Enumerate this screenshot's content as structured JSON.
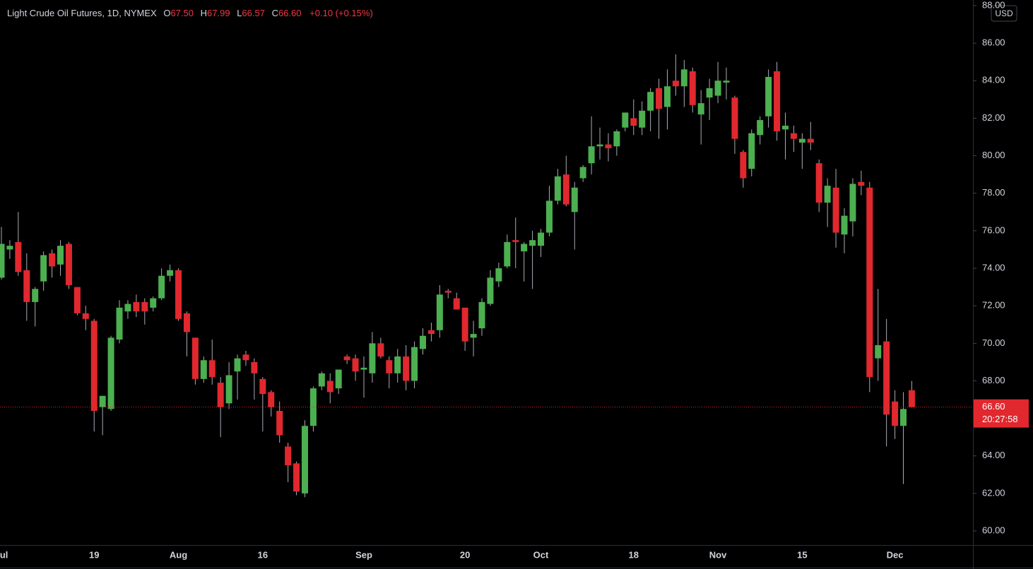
{
  "chart_data": {
    "type": "candlestick",
    "title": "Light Crude Oil Futures, 1D, NYMEX",
    "legend": {
      "open_key": "O",
      "open": "67.50",
      "high_key": "H",
      "high": "67.99",
      "low_key": "L",
      "low": "66.57",
      "close_key": "C",
      "close": "66.60",
      "change": "+0.10 (+0.15%)"
    },
    "currency": "USD",
    "last_price_label": "66.60",
    "countdown": "20:27:58",
    "up_color": "#4caf50",
    "down_color": "#e0282e",
    "wick_color": "#a8acb5",
    "categories": [
      "Jul",
      null,
      null,
      null,
      null,
      null,
      null,
      null,
      null,
      null,
      null,
      "19",
      null,
      null,
      null,
      null,
      null,
      null,
      null,
      null,
      null,
      "Aug",
      null,
      null,
      null,
      null,
      null,
      null,
      null,
      null,
      null,
      "16",
      null,
      null,
      null,
      null,
      null,
      null,
      null,
      null,
      null,
      null,
      null,
      "Sep",
      null,
      null,
      null,
      null,
      null,
      null,
      null,
      null,
      null,
      null,
      null,
      "20",
      null,
      null,
      null,
      null,
      null,
      null,
      null,
      null,
      "Oct",
      null,
      null,
      null,
      null,
      null,
      null,
      null,
      null,
      null,
      null,
      "18",
      null,
      null,
      null,
      null,
      null,
      null,
      null,
      null,
      null,
      "Nov",
      null,
      null,
      null,
      null,
      null,
      null,
      null,
      null,
      null,
      "15",
      null,
      null,
      null,
      null,
      null,
      null,
      null,
      null,
      null,
      null,
      "Dec",
      null,
      null
    ],
    "open": [
      73.5,
      75.0,
      75.4,
      73.9,
      72.2,
      73.3,
      74.8,
      74.2,
      75.3,
      73.0,
      71.6,
      71.2,
      66.6,
      66.5,
      70.2,
      71.7,
      72.2,
      72.2,
      71.9,
      72.4,
      73.6,
      73.9,
      71.6,
      70.3,
      68.1,
      69.1,
      67.9,
      66.8,
      68.5,
      69.4,
      69.0,
      68.1,
      67.4,
      66.4,
      64.5,
      63.6,
      62.0,
      65.6,
      67.7,
      68.0,
      67.6,
      69.3,
      69.2,
      68.6,
      68.4,
      70.0,
      69.1,
      68.4,
      69.3,
      68.0,
      69.7,
      70.7,
      70.7,
      72.8,
      72.4,
      71.9,
      70.3,
      70.8,
      72.1,
      73.3,
      74.1,
      75.5,
      74.9,
      75.2,
      75.2,
      75.9,
      77.6,
      79.0,
      77.0,
      78.8,
      79.6,
      80.5,
      80.6,
      80.5,
      81.5,
      82.0,
      81.5,
      82.4,
      83.6,
      82.6,
      84.0,
      83.7,
      84.5,
      82.2,
      83.1,
      83.2,
      83.9,
      83.1,
      80.2,
      79.3,
      81.1,
      82.1,
      84.5,
      81.4,
      81.2,
      80.7,
      80.9,
      79.6,
      77.5,
      78.3,
      75.8,
      76.5,
      78.6,
      78.3,
      69.2,
      70.1,
      66.9,
      65.6,
      67.5
    ],
    "high": [
      76.2,
      75.5,
      77.0,
      74.8,
      73.0,
      74.9,
      75.0,
      75.5,
      75.4,
      73.0,
      72.0,
      71.3,
      67.2,
      70.4,
      72.3,
      72.3,
      72.6,
      72.4,
      72.5,
      74.0,
      74.2,
      74.0,
      71.7,
      70.3,
      69.3,
      70.2,
      68.2,
      69.0,
      69.4,
      69.6,
      69.2,
      68.2,
      67.5,
      66.9,
      64.7,
      63.7,
      65.9,
      67.7,
      68.5,
      68.4,
      68.6,
      69.4,
      69.4,
      69.3,
      70.6,
      70.3,
      69.3,
      69.7,
      69.9,
      70.1,
      70.8,
      71.1,
      73.1,
      72.9,
      72.7,
      71.9,
      71.2,
      72.4,
      73.9,
      74.3,
      75.8,
      76.7,
      75.4,
      76.0,
      76.1,
      78.4,
      79.3,
      80.0,
      78.6,
      79.5,
      82.1,
      81.5,
      81.2,
      81.4,
      82.3,
      83.0,
      82.9,
      83.6,
      84.1,
      84.6,
      85.4,
      85.1,
      84.7,
      83.5,
      84.1,
      85.0,
      84.7,
      83.2,
      80.3,
      81.4,
      82.1,
      84.6,
      85.0,
      82.3,
      81.6,
      81.2,
      81.8,
      79.8,
      78.8,
      79.3,
      77.2,
      78.8,
      79.2,
      78.6,
      72.9,
      71.3,
      67.5,
      67.4,
      67.99
    ],
    "low": [
      73.4,
      74.5,
      73.6,
      71.2,
      70.9,
      72.8,
      73.5,
      73.6,
      72.9,
      71.5,
      70.7,
      65.3,
      65.1,
      66.4,
      70.0,
      71.3,
      71.4,
      71.0,
      71.7,
      72.3,
      73.3,
      71.2,
      69.3,
      67.8,
      67.9,
      67.8,
      65.0,
      66.5,
      67.0,
      68.8,
      67.0,
      65.3,
      66.1,
      64.7,
      62.6,
      61.9,
      61.8,
      65.3,
      67.5,
      66.8,
      67.3,
      68.9,
      68.0,
      67.1,
      67.9,
      69.2,
      67.6,
      67.9,
      67.5,
      67.6,
      69.4,
      70.1,
      70.3,
      72.4,
      71.8,
      69.6,
      69.3,
      70.4,
      72.0,
      73.0,
      74.0,
      74.0,
      73.3,
      72.9,
      74.6,
      75.7,
      77.4,
      77.3,
      75.0,
      78.6,
      79.0,
      79.8,
      79.7,
      80.0,
      81.3,
      81.1,
      81.1,
      81.3,
      80.9,
      81.4,
      83.2,
      82.6,
      82.3,
      80.6,
      81.9,
      82.8,
      83.0,
      80.1,
      78.3,
      78.9,
      80.6,
      81.5,
      80.8,
      79.8,
      80.2,
      79.3,
      80.3,
      77.0,
      76.2,
      75.1,
      74.8,
      75.7,
      77.9,
      67.4,
      68.0,
      64.5,
      64.9,
      62.5,
      66.57
    ],
    "close": [
      75.3,
      75.2,
      73.8,
      72.2,
      72.9,
      74.7,
      74.1,
      75.2,
      73.1,
      71.6,
      71.3,
      66.4,
      67.2,
      70.3,
      71.9,
      72.1,
      71.7,
      71.7,
      72.4,
      73.6,
      73.9,
      71.3,
      70.6,
      68.1,
      69.1,
      68.2,
      66.6,
      68.3,
      69.2,
      69.1,
      68.4,
      67.3,
      66.6,
      65.1,
      63.5,
      62.1,
      65.6,
      67.6,
      68.4,
      67.4,
      68.6,
      69.1,
      68.5,
      68.7,
      70.0,
      69.3,
      68.4,
      69.3,
      68.0,
      69.8,
      70.4,
      70.5,
      72.6,
      72.7,
      71.8,
      70.1,
      70.5,
      72.2,
      73.5,
      74.0,
      75.4,
      75.4,
      75.3,
      75.5,
      75.9,
      77.6,
      78.9,
      77.4,
      78.3,
      79.4,
      80.5,
      80.6,
      80.4,
      81.3,
      82.3,
      81.6,
      82.4,
      83.4,
      82.5,
      83.7,
      83.7,
      84.6,
      82.7,
      82.8,
      83.6,
      84.0,
      84.0,
      80.9,
      78.8,
      81.2,
      81.9,
      84.2,
      81.3,
      81.6,
      80.9,
      80.9,
      80.7,
      77.5,
      78.4,
      75.9,
      76.8,
      78.5,
      78.4,
      68.2,
      69.9,
      66.2,
      65.6,
      66.5,
      66.6
    ],
    "ylim": [
      59.25,
      88.3
    ],
    "yticks": [
      {
        "value": 60,
        "label": "60.00"
      },
      {
        "value": 62,
        "label": "62.00"
      },
      {
        "value": 64,
        "label": "64.00"
      },
      {
        "value": 66,
        "label": "66.00"
      },
      {
        "value": 68,
        "label": "68.00"
      },
      {
        "value": 70,
        "label": "70.00"
      },
      {
        "value": 72,
        "label": "72.00"
      },
      {
        "value": 74,
        "label": "74.00"
      },
      {
        "value": 76,
        "label": "76.00"
      },
      {
        "value": 78,
        "label": "78.00"
      },
      {
        "value": 80,
        "label": "80.00"
      },
      {
        "value": 82,
        "label": "82.00"
      },
      {
        "value": 84,
        "label": "84.00"
      },
      {
        "value": 86,
        "label": "86.00"
      },
      {
        "value": 88,
        "label": "88.00"
      }
    ],
    "grid": false
  }
}
